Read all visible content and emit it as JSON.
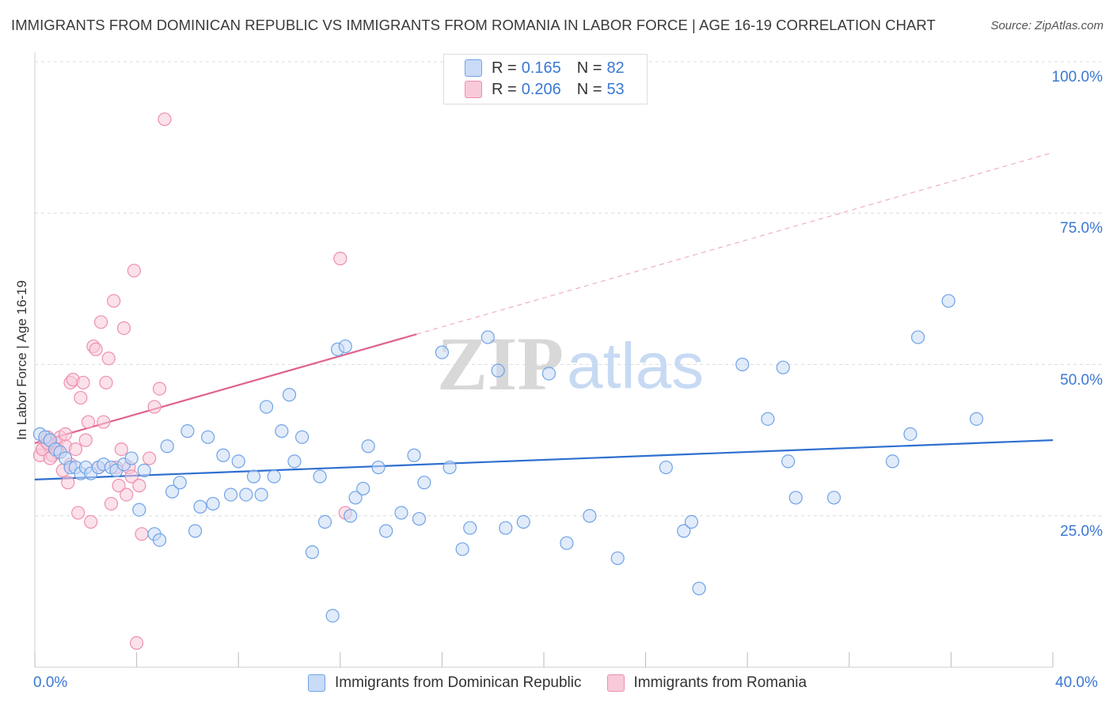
{
  "title": "IMMIGRANTS FROM DOMINICAN REPUBLIC VS IMMIGRANTS FROM ROMANIA IN LABOR FORCE | AGE 16-19 CORRELATION CHART",
  "source": "Source: ZipAtlas.com",
  "watermark": {
    "zip": "ZIP",
    "atlas": "atlas"
  },
  "colors": {
    "blue": "#6fa3e6",
    "blue_line": "#2f6fd0",
    "pink": "#ee8fb0",
    "pink_line": "#e0628f",
    "blue_fill": "#c9dbf6",
    "pink_fill": "#f8c9d8",
    "axis_text": "#3a78d4"
  },
  "legend": {
    "rows": [
      {
        "r_label": "R =",
        "r_value": "0.165",
        "n_label": "N =",
        "n_value": "82"
      },
      {
        "r_label": "R =",
        "r_value": "0.206",
        "n_label": "N =",
        "n_value": "53"
      }
    ]
  },
  "chart_data": {
    "type": "scatter",
    "xlabel": "",
    "ylabel": "In Labor Force | Age 16-19",
    "xlim": [
      0,
      40
    ],
    "ylim": [
      0,
      100
    ],
    "x_tick_labels": [
      "0.0%",
      "40.0%"
    ],
    "y_tick_labels": [
      "25.0%",
      "50.0%",
      "75.0%",
      "100.0%"
    ],
    "y_ticks": [
      25,
      50,
      75,
      100
    ],
    "grid": true,
    "series": [
      {
        "name": "Immigrants from Dominican Republic",
        "color": "blue",
        "trend": {
          "x": [
            0,
            40
          ],
          "y": [
            31.0,
            37.5
          ],
          "dashed_beyond": null
        },
        "points": [
          [
            0.2,
            38.5
          ],
          [
            0.4,
            38
          ],
          [
            0.6,
            37.5
          ],
          [
            0.8,
            36
          ],
          [
            1.0,
            35.5
          ],
          [
            1.2,
            34.5
          ],
          [
            1.4,
            33
          ],
          [
            1.6,
            33
          ],
          [
            1.8,
            32
          ],
          [
            2.0,
            33
          ],
          [
            2.2,
            32
          ],
          [
            2.5,
            33
          ],
          [
            2.7,
            33.5
          ],
          [
            3.0,
            33
          ],
          [
            3.2,
            32.5
          ],
          [
            3.5,
            33.5
          ],
          [
            3.8,
            34.5
          ],
          [
            4.1,
            26
          ],
          [
            4.3,
            32.5
          ],
          [
            4.7,
            22
          ],
          [
            4.9,
            21
          ],
          [
            5.2,
            36.5
          ],
          [
            5.4,
            29
          ],
          [
            5.7,
            30.5
          ],
          [
            6.0,
            39
          ],
          [
            6.3,
            22.5
          ],
          [
            6.5,
            26.5
          ],
          [
            6.8,
            38
          ],
          [
            7.0,
            27
          ],
          [
            7.4,
            35
          ],
          [
            7.7,
            28.5
          ],
          [
            8.0,
            34
          ],
          [
            8.3,
            28.5
          ],
          [
            8.6,
            31.5
          ],
          [
            8.9,
            28.5
          ],
          [
            9.1,
            43
          ],
          [
            9.4,
            31.5
          ],
          [
            9.7,
            39
          ],
          [
            10.0,
            45
          ],
          [
            10.2,
            34
          ],
          [
            10.5,
            38
          ],
          [
            10.9,
            19
          ],
          [
            11.2,
            31.5
          ],
          [
            11.4,
            24
          ],
          [
            11.7,
            8.5
          ],
          [
            11.9,
            52.5
          ],
          [
            12.2,
            53
          ],
          [
            12.4,
            25
          ],
          [
            12.6,
            28
          ],
          [
            12.9,
            29.5
          ],
          [
            13.1,
            36.5
          ],
          [
            13.5,
            33
          ],
          [
            13.8,
            22.5
          ],
          [
            14.4,
            25.5
          ],
          [
            14.9,
            35
          ],
          [
            15.1,
            24.5
          ],
          [
            15.3,
            30.5
          ],
          [
            16.0,
            52
          ],
          [
            16.3,
            33
          ],
          [
            16.8,
            19.5
          ],
          [
            17.1,
            23
          ],
          [
            17.8,
            54.5
          ],
          [
            18.2,
            49
          ],
          [
            18.5,
            23
          ],
          [
            19.2,
            24
          ],
          [
            20.2,
            48.5
          ],
          [
            20.9,
            20.5
          ],
          [
            21.8,
            25
          ],
          [
            22.9,
            18
          ],
          [
            24.8,
            33
          ],
          [
            25.5,
            22.5
          ],
          [
            25.8,
            24
          ],
          [
            26.1,
            13
          ],
          [
            27.8,
            50
          ],
          [
            28.8,
            41
          ],
          [
            29.4,
            49.5
          ],
          [
            29.6,
            34
          ],
          [
            29.9,
            28
          ],
          [
            31.4,
            28
          ],
          [
            33.7,
            34
          ],
          [
            34.4,
            38.5
          ],
          [
            34.7,
            54.5
          ],
          [
            35.9,
            60.5
          ],
          [
            37.0,
            41
          ]
        ]
      },
      {
        "name": "Immigrants from Romania",
        "color": "pink",
        "trend": {
          "x": [
            0,
            15
          ],
          "y": [
            37,
            55
          ],
          "dashed_to": {
            "x": 40,
            "y": 85
          }
        },
        "points": [
          [
            0.2,
            35
          ],
          [
            0.3,
            36
          ],
          [
            0.4,
            37.5
          ],
          [
            0.5,
            38
          ],
          [
            0.6,
            36.5
          ],
          [
            0.7,
            35
          ],
          [
            0.8,
            37
          ],
          [
            0.9,
            36
          ],
          [
            1.0,
            38
          ],
          [
            1.1,
            32.5
          ],
          [
            1.2,
            36.5
          ],
          [
            1.3,
            30.5
          ],
          [
            1.4,
            47
          ],
          [
            1.5,
            47.5
          ],
          [
            1.6,
            36
          ],
          [
            1.7,
            25.5
          ],
          [
            1.8,
            44.5
          ],
          [
            1.9,
            47
          ],
          [
            2.0,
            37.5
          ],
          [
            2.1,
            40.5
          ],
          [
            2.2,
            24
          ],
          [
            2.3,
            53
          ],
          [
            2.4,
            52.5
          ],
          [
            2.5,
            33
          ],
          [
            2.6,
            57
          ],
          [
            2.7,
            40.5
          ],
          [
            2.8,
            47
          ],
          [
            2.9,
            51
          ],
          [
            3.0,
            27
          ],
          [
            3.1,
            60.5
          ],
          [
            3.2,
            33
          ],
          [
            3.3,
            30
          ],
          [
            3.4,
            36
          ],
          [
            3.5,
            56
          ],
          [
            3.6,
            28.5
          ],
          [
            3.7,
            33
          ],
          [
            3.8,
            31.5
          ],
          [
            3.9,
            65.5
          ],
          [
            4.0,
            4
          ],
          [
            4.1,
            30
          ],
          [
            4.2,
            22
          ],
          [
            4.5,
            34.5
          ],
          [
            4.7,
            43
          ],
          [
            4.9,
            46
          ],
          [
            5.1,
            90.5
          ],
          [
            12.0,
            67.5
          ],
          [
            12.2,
            25.5
          ],
          [
            0.3,
            36
          ],
          [
            0.5,
            37
          ],
          [
            0.9,
            35.5
          ],
          [
            1.2,
            38.5
          ],
          [
            1.4,
            33.5
          ],
          [
            0.6,
            34.5
          ]
        ]
      }
    ]
  },
  "bottom_legend": [
    "Immigrants from Dominican Republic",
    "Immigrants from Romania"
  ]
}
